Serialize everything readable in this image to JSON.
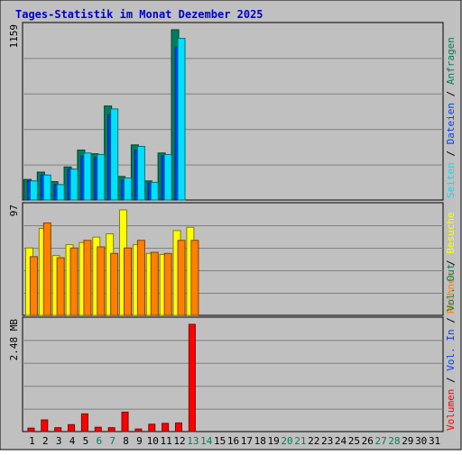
{
  "title": "Tages-Statistik im Monat Dezember 2025",
  "colors": {
    "background": "#c0c0c0",
    "title": "#0000cc",
    "hits": "#00805a",
    "files": "#0040ff",
    "pages": "#00e0ff",
    "visits": "#ffff00",
    "sites": "#ff8000",
    "kbytes": "#ff0000",
    "weekend": "#00805a",
    "weekday": "#000000"
  },
  "right_legend_top": [
    {
      "text": "Seiten",
      "color": "#00e0ff"
    },
    {
      "text": " / ",
      "color": "#000000"
    },
    {
      "text": "Dateien",
      "color": "#0040ff"
    },
    {
      "text": " / ",
      "color": "#000000"
    },
    {
      "text": "Anfragen",
      "color": "#00805a"
    }
  ],
  "right_legend_mid": [
    {
      "text": "Rechner",
      "color": "#ff8000"
    },
    {
      "text": " / ",
      "color": "#000000"
    },
    {
      "text": "Besuche",
      "color": "#ffff00"
    }
  ],
  "right_legend_bot": [
    {
      "text": "Volumen",
      "color": "#ff0000"
    },
    {
      "text": " / ",
      "color": "#000000"
    },
    {
      "text": "Vol. In",
      "color": "#0040ff"
    },
    {
      "text": " / ",
      "color": "#000000"
    },
    {
      "text": "Vol. Out",
      "color": "#00805a"
    }
  ],
  "chart_data": {
    "type": "bar",
    "title": "Tages-Statistik im Monat Dezember 2025",
    "days": [
      "1",
      "2",
      "3",
      "4",
      "5",
      "6",
      "7",
      "8",
      "9",
      "10",
      "11",
      "12",
      "13",
      "14",
      "15",
      "16",
      "17",
      "18",
      "19",
      "20",
      "21",
      "22",
      "23",
      "24",
      "25",
      "26",
      "27",
      "28",
      "29",
      "30",
      "31"
    ],
    "weekend_days": [
      "6",
      "7",
      "13",
      "14",
      "20",
      "21",
      "27",
      "28"
    ],
    "panels": [
      {
        "name": "requests",
        "max_label": "1159",
        "ymax": 1159,
        "series": [
          {
            "name": "Anfragen",
            "values": [
              140,
              190,
              125,
              225,
              340,
              315,
              640,
              160,
              375,
              130,
              320,
              1159,
              0,
              0,
              0,
              0,
              0,
              0,
              0,
              0,
              0,
              0,
              0,
              0,
              0,
              0,
              0,
              0,
              0,
              0,
              0
            ]
          },
          {
            "name": "Dateien",
            "values": [
              130,
              170,
              105,
              210,
              300,
              290,
              580,
              135,
              340,
              115,
              300,
              1040,
              0,
              0,
              0,
              0,
              0,
              0,
              0,
              0,
              0,
              0,
              0,
              0,
              0,
              0,
              0,
              0,
              0,
              0,
              0
            ]
          },
          {
            "name": "Seiten",
            "values": [
              130,
              170,
              105,
              210,
              320,
              310,
              620,
              150,
              365,
              120,
              310,
              1100,
              0,
              0,
              0,
              0,
              0,
              0,
              0,
              0,
              0,
              0,
              0,
              0,
              0,
              0,
              0,
              0,
              0,
              0,
              0
            ]
          }
        ]
      },
      {
        "name": "visits",
        "max_label": "97",
        "ymax": 97,
        "series": [
          {
            "name": "Besuche",
            "values": [
              62,
              80,
              55,
              65,
              67,
              72,
              75,
              97,
              65,
              57,
              56,
              78,
              81,
              0,
              0,
              0,
              0,
              0,
              0,
              0,
              0,
              0,
              0,
              0,
              0,
              0,
              0,
              0,
              0,
              0,
              0
            ]
          },
          {
            "name": "Rechner",
            "values": [
              54,
              85,
              53,
              62,
              69,
              63,
              57,
              62,
              69,
              58,
              57,
              69,
              69,
              0,
              0,
              0,
              0,
              0,
              0,
              0,
              0,
              0,
              0,
              0,
              0,
              0,
              0,
              0,
              0,
              0,
              0
            ]
          }
        ]
      },
      {
        "name": "volume",
        "max_label": "2.48 MB",
        "ymax": 2.48,
        "series": [
          {
            "name": "Volumen",
            "values": [
              0.08,
              0.27,
              0.09,
              0.16,
              0.41,
              0.1,
              0.09,
              0.45,
              0.06,
              0.17,
              0.19,
              0.2,
              2.48,
              0,
              0,
              0,
              0,
              0,
              0,
              0,
              0,
              0,
              0,
              0,
              0,
              0,
              0,
              0,
              0,
              0,
              0
            ]
          }
        ]
      }
    ]
  }
}
